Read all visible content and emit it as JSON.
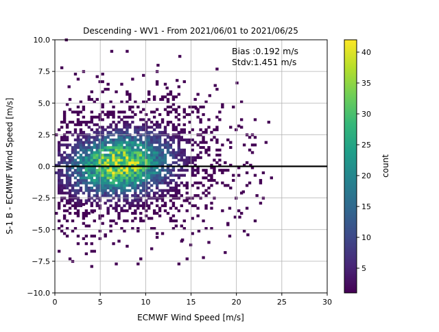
{
  "chart_data": {
    "type": "heatmap",
    "title": "Descending - WV1 - From 2021/06/01 to 2021/06/25",
    "xlabel": "ECMWF Wind Speed [m/s]",
    "ylabel": "S-1 B - ECMWF Wind Speed [m/s]",
    "xlim": [
      0,
      30
    ],
    "ylim": [
      -10,
      10
    ],
    "xticks": [
      "0",
      "5",
      "10",
      "15",
      "20",
      "25",
      "30"
    ],
    "yticks": [
      "−10.0",
      "−7.5",
      "−5.0",
      "−2.5",
      "0.0",
      "2.5",
      "5.0",
      "7.5",
      "10.0"
    ],
    "grid": true,
    "zero_line_y": 0,
    "annotation": {
      "line1": "Bias :0.192 m/s",
      "line2": "Stdv:1.451 m/s"
    },
    "colorbar": {
      "label": "count",
      "range": [
        1,
        42
      ],
      "ticks": [
        "5",
        "10",
        "15",
        "20",
        "25",
        "30",
        "35",
        "40"
      ],
      "colormap": "viridis"
    },
    "density_core": {
      "center": [
        7.0,
        0.1
      ],
      "peak_count": 42,
      "spread_x": 3.6,
      "spread_y": 1.5
    },
    "outliers": [
      [
        1.1,
        9.9
      ],
      [
        6.1,
        9.0
      ],
      [
        7.8,
        9.0
      ],
      [
        13.6,
        8.6
      ],
      [
        0.6,
        7.7
      ],
      [
        11.2,
        7.9
      ],
      [
        17.5,
        6.3
      ],
      [
        19.9,
        6.5
      ],
      [
        16.9,
        5.5
      ],
      [
        13.3,
        6.7
      ],
      [
        11.5,
        5.2
      ],
      [
        12.2,
        6.1
      ],
      [
        9.6,
        7.1
      ],
      [
        4.5,
        7.0
      ],
      [
        18.0,
        4.2
      ],
      [
        20.1,
        3.1
      ],
      [
        15.4,
        4.5
      ],
      [
        1.4,
        6.2
      ],
      [
        3.0,
        7.4
      ],
      [
        21.4,
        0.0
      ],
      [
        22.1,
        -2.4
      ],
      [
        20.6,
        -2.1
      ],
      [
        19.1,
        -3.4
      ],
      [
        18.9,
        -4.7
      ],
      [
        20.2,
        -4.1
      ],
      [
        21.1,
        -5.5
      ],
      [
        17.1,
        -5.0
      ],
      [
        15.7,
        -5.2
      ],
      [
        13.9,
        -5.9
      ],
      [
        11.1,
        -5.7
      ],
      [
        14.4,
        -7.4
      ],
      [
        16.2,
        -7.3
      ],
      [
        18.6,
        -6.9
      ],
      [
        16.8,
        -6.1
      ],
      [
        5.4,
        -5.5
      ],
      [
        4.0,
        -3.7
      ],
      [
        3.0,
        -3.1
      ],
      [
        19.1,
        -5.6
      ],
      [
        19.7,
        -4.1
      ],
      [
        14.8,
        -6.3
      ]
    ]
  }
}
